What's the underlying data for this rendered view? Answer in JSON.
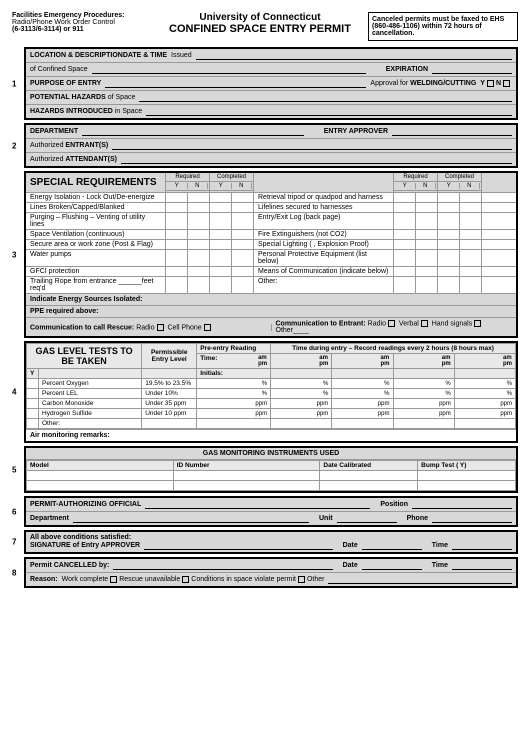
{
  "header": {
    "left_title": "Facilities Emergency Procedures:",
    "left_line2": "Radio/Phone Work Order Control",
    "left_line3": "(6-3113/6-3114) or 911",
    "university": "University of Connecticut",
    "main_title": "CONFINED SPACE ENTRY PERMIT",
    "right_text": "Canceled permits must be faxed to EHS (860-486-1106) within 72 hours of cancellation."
  },
  "section1": {
    "loc_label": "LOCATION & DESCRIPTIONDATE & TIME",
    "issued": "Issued",
    "of_space": "of Confined Space",
    "expiration": "EXPIRATION",
    "purpose": "PURPOSE OF ENTRY",
    "approval": "Approval for",
    "welding": "WELDING/CUTTING",
    "y": "Y",
    "n": "N",
    "hazards": "POTENTIAL HAZARDS",
    "hazards_of": "of Space",
    "hazards_intro": "HAZARDS INTRODUCED",
    "in_space": "in Space"
  },
  "section2": {
    "dept": "DEPARTMENT",
    "approver": "ENTRY APPROVER",
    "entrants": "Authorized ENTRANT(S)",
    "attendants": "Authorized ATTENDANT(S)"
  },
  "special_req": {
    "title": "SPECIAL REQUIREMENTS",
    "required": "Required",
    "completed": "Completed",
    "y": "Y",
    "n": "N",
    "left_items": [
      "Energy Isolation - Lock Out/De-energize",
      "Lines Broken/Capped/Blanked",
      "Purging – Flushing – Venting of utility lines",
      "Space Ventilation (continuous)",
      "Secure area or work zone (Post & Flag)",
      "Water pumps",
      "GFCI protection",
      "Trailing Rope from entrance ______feet req'd"
    ],
    "right_items": [
      "Retrieval tripod or quadpod and harness",
      "Lifelines secured to harnesses",
      "Entry/Exit Log (back page)",
      "Fire Extinguishers (not CO2)",
      "Special Lighting ( , Explosion Proof)",
      "Personal Protective Equipment (list below)",
      "Means of Communication (indicate below)",
      "Other:"
    ],
    "indicate": "Indicate Energy Sources Isolated:",
    "ppe": "PPE required above:",
    "comm_rescue": "Communication to call Rescue:",
    "radio": "Radio",
    "cell": "Cell Phone",
    "comm_entrant": "Communication to Entrant:",
    "verbal": "Verbal",
    "hand": "Hand signals",
    "other": "Other"
  },
  "gas": {
    "title": "GAS LEVEL TESTS TO BE TAKEN",
    "permissible": "Permissible Entry Level",
    "pre_entry": "Pre-entry Reading",
    "time": "Time:",
    "time_during": "Time during entry – Record readings every 2 hours (8 hours max)",
    "am": "am",
    "pm": "pm",
    "initials": "Initials:",
    "y": "Y",
    "rows": [
      {
        "name": "Percent Oxygen",
        "limit": "19.5% to 23.5%",
        "unit": "%"
      },
      {
        "name": "Percent LEL",
        "limit": "Under 10%",
        "unit": "%"
      },
      {
        "name": "Carbon Monoxide",
        "limit": "Under 35 ppm",
        "unit": "ppm"
      },
      {
        "name": "Hydrogen Sulfide",
        "limit": "Under 10 ppm",
        "unit": "ppm"
      },
      {
        "name": "Other:",
        "limit": "",
        "unit": ""
      }
    ],
    "air_remarks": "Air monitoring remarks:"
  },
  "instruments": {
    "title": "GAS MONITORING INSTRUMENTS USED",
    "model": "Model",
    "id": "ID Number",
    "date_cal": "Date Calibrated",
    "bump": "Bump Test ( Y)"
  },
  "section6": {
    "official": "PERMIT-AUTHORIZING OFFICIAL",
    "position": "Position",
    "dept": "Department",
    "unit": "Unit",
    "phone": "Phone"
  },
  "section7": {
    "cond": "All above conditions satisfied:",
    "sig": "SIGNATURE of Entry APPROVER",
    "date": "Date",
    "time": "Time"
  },
  "section8": {
    "cancelled": "Permit CANCELLED by:",
    "date": "Date",
    "time": "Time",
    "reason": "Reason:",
    "work": "Work complete",
    "rescue": "Rescue unavailable",
    "conditions": "Conditions in space violate permit",
    "other": "Other"
  }
}
